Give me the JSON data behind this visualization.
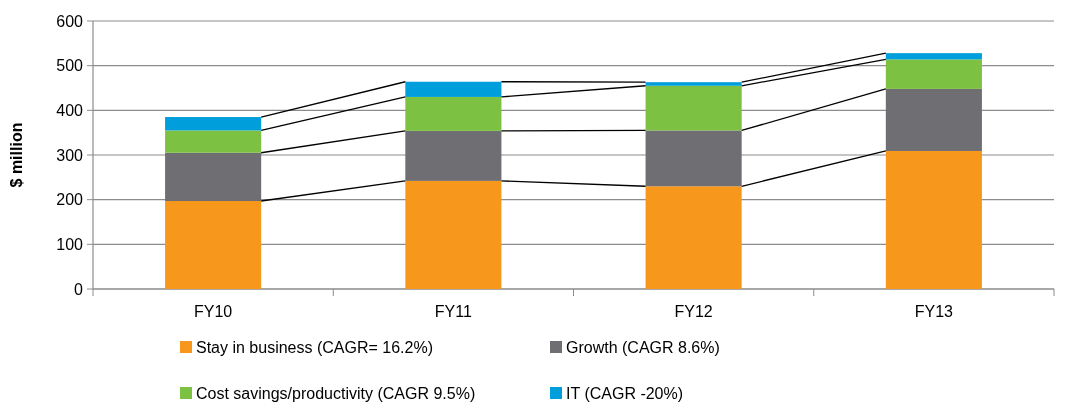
{
  "chart_data": {
    "type": "bar",
    "stacked": true,
    "ylabel": "$ million",
    "categories": [
      "FY10",
      "FY11",
      "FY12",
      "FY13"
    ],
    "ylim": [
      0,
      600
    ],
    "yticks": [
      0,
      100,
      200,
      300,
      400,
      500,
      600
    ],
    "grid": "y",
    "legend": "bottom",
    "series": [
      {
        "name": "Stay in business (CAGR= 16.2%)",
        "color": "#f7981d",
        "values": [
          197,
          242,
          230,
          309
        ]
      },
      {
        "name": "Growth (CAGR 8.6%)",
        "color": "#6f6e72",
        "values": [
          108,
          112,
          125,
          139
        ]
      },
      {
        "name": "Cost savings/productivity (CAGR 9.5%)",
        "color": "#7cc142",
        "values": [
          50,
          76,
          100,
          66
        ]
      },
      {
        "name": "IT (CAGR -20%)",
        "color": "#009edb",
        "values": [
          30,
          34,
          8,
          14
        ]
      }
    ]
  }
}
